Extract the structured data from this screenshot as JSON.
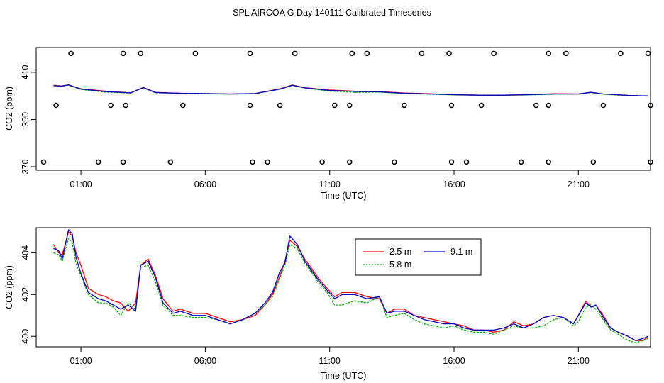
{
  "title": "SPL AIRCOA G  Day 140111  Calibrated Timeseries",
  "chart_data": [
    {
      "type": "line",
      "panel": "top",
      "ylabel": "CO2 (ppm)",
      "xlabel": "Time (UTC)",
      "xlim": [
        -0.8,
        23.9
      ],
      "ylim": [
        368.5,
        420.5
      ],
      "x_ticks": [
        1,
        6,
        11,
        16,
        21
      ],
      "x_tick_labels": [
        "01:00",
        "06:00",
        "11:00",
        "16:00",
        "21:00"
      ],
      "y_ticks": [
        370,
        390,
        410
      ],
      "y_tick_labels": [
        "370",
        "390",
        "410"
      ],
      "series": [
        {
          "color": "#ff0000",
          "x": [
            -0.1,
            0.2,
            0.5,
            1.0,
            2.0,
            3.0,
            3.5,
            4.0,
            5.0,
            6.0,
            7.0,
            8.0,
            9.0,
            9.5,
            10.0,
            11.0,
            12.0,
            13.0,
            14.0,
            15.0,
            16.0,
            17.0,
            18.0,
            19.0,
            20.0,
            21.0,
            21.5,
            22.0,
            23.0,
            23.8
          ],
          "y": [
            404.5,
            404.2,
            404.6,
            403.0,
            402.0,
            401.3,
            403.6,
            401.5,
            401.1,
            401.0,
            400.8,
            401.0,
            403.0,
            404.6,
            403.5,
            402.5,
            402.0,
            401.8,
            401.2,
            400.9,
            400.5,
            400.3,
            400.3,
            400.5,
            400.9,
            400.8,
            401.5,
            400.8,
            400.2,
            399.9
          ]
        },
        {
          "color": "#00b000",
          "x": [
            -0.1,
            0.2,
            0.5,
            1.0,
            2.0,
            3.0,
            3.5,
            4.0,
            5.0,
            6.0,
            7.0,
            8.0,
            9.0,
            9.5,
            10.0,
            11.0,
            12.0,
            13.0,
            14.0,
            15.0,
            16.0,
            17.0,
            18.0,
            19.0,
            20.0,
            21.0,
            21.5,
            22.0,
            23.0,
            23.8
          ],
          "y": [
            404.3,
            404.0,
            404.5,
            402.7,
            401.6,
            401.2,
            403.4,
            401.3,
            401.0,
            400.9,
            400.7,
            400.9,
            402.8,
            404.4,
            403.3,
            402.0,
            401.5,
            401.6,
            401.0,
            400.7,
            400.4,
            400.2,
            400.2,
            400.4,
            400.7,
            400.7,
            401.4,
            400.7,
            400.1,
            399.9
          ]
        },
        {
          "color": "#0000cc",
          "x": [
            -0.1,
            0.2,
            0.5,
            1.0,
            2.0,
            3.0,
            3.5,
            4.0,
            5.0,
            6.0,
            7.0,
            8.0,
            9.0,
            9.5,
            10.0,
            11.0,
            12.0,
            13.0,
            14.0,
            15.0,
            16.0,
            17.0,
            18.0,
            19.0,
            20.0,
            21.0,
            21.5,
            22.0,
            23.0,
            23.8
          ],
          "y": [
            404.4,
            404.1,
            404.7,
            402.9,
            401.8,
            401.3,
            403.5,
            401.4,
            401.1,
            401.0,
            400.8,
            401.0,
            402.9,
            404.5,
            403.4,
            402.3,
            401.9,
            401.7,
            401.1,
            400.8,
            400.5,
            400.3,
            400.3,
            400.5,
            400.8,
            400.8,
            401.5,
            400.8,
            400.2,
            400.0
          ]
        }
      ],
      "scatter_groups": [
        {
          "y": 418,
          "x": [
            0.6,
            2.7,
            3.4,
            5.6,
            7.8,
            9.6,
            11.9,
            12.5,
            14.7,
            15.8,
            17.6,
            19.8,
            20.5,
            22.7,
            23.8
          ]
        },
        {
          "y": 396,
          "x": [
            0.0,
            2.2,
            2.8,
            5.1,
            7.8,
            9.0,
            11.2,
            11.8,
            14.0,
            15.9,
            17.1,
            19.3,
            19.8,
            22.0,
            23.9
          ]
        },
        {
          "y": 372,
          "x": [
            -0.5,
            1.7,
            2.7,
            4.6,
            7.9,
            8.5,
            10.7,
            11.8,
            13.6,
            15.9,
            16.5,
            18.7,
            19.8,
            21.6,
            23.9
          ]
        }
      ]
    },
    {
      "type": "line",
      "panel": "bottom",
      "ylabel": "CO2 (ppm)",
      "xlabel": "Time (UTC)",
      "xlim": [
        -0.8,
        23.9
      ],
      "ylim": [
        399.5,
        405.2
      ],
      "x_ticks": [
        1,
        6,
        11,
        16,
        21
      ],
      "x_tick_labels": [
        "01:00",
        "06:00",
        "11:00",
        "16:00",
        "21:00"
      ],
      "y_ticks": [
        400,
        402,
        404
      ],
      "y_tick_labels": [
        "400",
        "402",
        "404"
      ],
      "legend_position": "top-center",
      "series": [
        {
          "name": "2.5 m",
          "color": "#ff0000",
          "x": [
            -0.1,
            0.1,
            0.25,
            0.5,
            0.65,
            0.8,
            1.0,
            1.3,
            1.7,
            2.0,
            2.3,
            2.6,
            2.9,
            3.2,
            3.4,
            3.7,
            4.0,
            4.3,
            4.7,
            5.0,
            5.5,
            6.0,
            6.5,
            7.0,
            7.5,
            8.0,
            8.4,
            8.7,
            9.0,
            9.2,
            9.4,
            9.7,
            10.0,
            10.3,
            10.6,
            10.9,
            11.2,
            11.5,
            12.0,
            12.5,
            13.0,
            13.3,
            13.6,
            14.0,
            14.4,
            14.8,
            15.2,
            15.6,
            16.0,
            16.4,
            16.8,
            17.2,
            17.6,
            18.0,
            18.4,
            18.8,
            19.2,
            19.6,
            20.0,
            20.4,
            20.8,
            21.0,
            21.3,
            21.5,
            21.7,
            22.0,
            22.3,
            22.6,
            23.0,
            23.3,
            23.6,
            23.8
          ],
          "y": [
            404.4,
            404.0,
            403.9,
            405.0,
            404.8,
            404.0,
            403.4,
            402.3,
            402.0,
            401.9,
            401.7,
            401.6,
            401.2,
            401.6,
            403.4,
            403.7,
            402.9,
            401.8,
            401.2,
            401.3,
            401.1,
            401.1,
            400.9,
            400.7,
            400.8,
            401.0,
            401.5,
            402.0,
            402.9,
            403.6,
            404.6,
            404.3,
            403.7,
            403.2,
            402.7,
            402.3,
            401.9,
            402.1,
            402.1,
            401.9,
            401.8,
            401.1,
            401.3,
            401.3,
            401.0,
            400.9,
            400.8,
            400.7,
            400.6,
            400.5,
            400.3,
            400.3,
            400.2,
            400.3,
            400.7,
            400.5,
            400.6,
            400.9,
            401.0,
            400.9,
            400.6,
            401.0,
            401.7,
            401.4,
            401.5,
            401.0,
            400.4,
            400.2,
            400.0,
            399.8,
            399.8,
            400.0
          ]
        },
        {
          "name": "5.8 m",
          "color": "#00b000",
          "x": [
            -0.1,
            0.1,
            0.25,
            0.5,
            0.65,
            0.8,
            1.0,
            1.3,
            1.7,
            2.0,
            2.3,
            2.6,
            2.9,
            3.2,
            3.4,
            3.7,
            4.0,
            4.3,
            4.7,
            5.0,
            5.5,
            6.0,
            6.5,
            7.0,
            7.5,
            8.0,
            8.4,
            8.7,
            9.0,
            9.2,
            9.4,
            9.7,
            10.0,
            10.3,
            10.6,
            10.9,
            11.2,
            11.5,
            12.0,
            12.5,
            13.0,
            13.3,
            13.6,
            14.0,
            14.4,
            14.8,
            15.2,
            15.6,
            16.0,
            16.4,
            16.8,
            17.2,
            17.6,
            18.0,
            18.4,
            18.8,
            19.2,
            19.6,
            20.0,
            20.4,
            20.8,
            21.0,
            21.3,
            21.5,
            21.7,
            22.0,
            22.3,
            22.6,
            23.0,
            23.3,
            23.6,
            23.8
          ],
          "y": [
            404.0,
            403.9,
            403.6,
            404.7,
            404.5,
            403.5,
            402.9,
            402.0,
            401.6,
            401.6,
            401.4,
            401.0,
            401.6,
            401.3,
            403.3,
            403.4,
            402.6,
            401.5,
            401.0,
            401.0,
            400.9,
            400.9,
            400.8,
            400.6,
            400.8,
            401.1,
            401.5,
            401.9,
            402.8,
            403.4,
            404.4,
            404.2,
            403.5,
            403.0,
            402.5,
            402.1,
            401.5,
            401.5,
            401.7,
            401.6,
            401.9,
            400.9,
            401.0,
            401.1,
            400.8,
            400.6,
            400.5,
            400.4,
            400.5,
            400.3,
            400.2,
            400.2,
            400.1,
            400.3,
            400.5,
            400.4,
            400.4,
            400.5,
            400.8,
            400.9,
            400.5,
            400.7,
            401.4,
            401.5,
            401.3,
            400.8,
            400.3,
            400.1,
            399.8,
            399.7,
            399.8,
            399.9
          ]
        },
        {
          "name": "9.1 m",
          "color": "#0000cc",
          "x": [
            -0.1,
            0.1,
            0.25,
            0.5,
            0.65,
            0.8,
            1.0,
            1.3,
            1.7,
            2.0,
            2.3,
            2.6,
            2.9,
            3.2,
            3.4,
            3.7,
            4.0,
            4.3,
            4.7,
            5.0,
            5.5,
            6.0,
            6.5,
            7.0,
            7.5,
            8.0,
            8.4,
            8.7,
            9.0,
            9.2,
            9.4,
            9.7,
            10.0,
            10.3,
            10.6,
            10.9,
            11.2,
            11.5,
            12.0,
            12.5,
            13.0,
            13.3,
            13.6,
            14.0,
            14.4,
            14.8,
            15.2,
            15.6,
            16.0,
            16.4,
            16.8,
            17.2,
            17.6,
            18.0,
            18.4,
            18.8,
            19.2,
            19.6,
            20.0,
            20.4,
            20.8,
            21.0,
            21.3,
            21.5,
            21.7,
            22.0,
            22.3,
            22.6,
            23.0,
            23.3,
            23.6,
            23.8
          ],
          "y": [
            404.2,
            404.1,
            403.7,
            405.1,
            404.9,
            403.8,
            403.0,
            402.1,
            401.8,
            401.7,
            401.5,
            401.3,
            401.5,
            401.2,
            403.4,
            403.6,
            402.8,
            401.6,
            401.1,
            401.2,
            401.0,
            401.0,
            400.8,
            400.6,
            400.8,
            401.1,
            401.6,
            402.1,
            403.1,
            403.5,
            404.8,
            404.4,
            403.6,
            403.1,
            402.6,
            402.2,
            401.8,
            402.0,
            402.0,
            401.8,
            401.9,
            401.1,
            401.2,
            401.2,
            401.0,
            400.8,
            400.7,
            400.6,
            400.6,
            400.4,
            400.3,
            400.3,
            400.3,
            400.4,
            400.6,
            400.4,
            400.6,
            400.9,
            401.0,
            400.9,
            400.6,
            401.0,
            401.6,
            401.4,
            401.5,
            400.9,
            400.4,
            400.2,
            400.0,
            399.8,
            399.9,
            400.0
          ]
        }
      ]
    }
  ]
}
